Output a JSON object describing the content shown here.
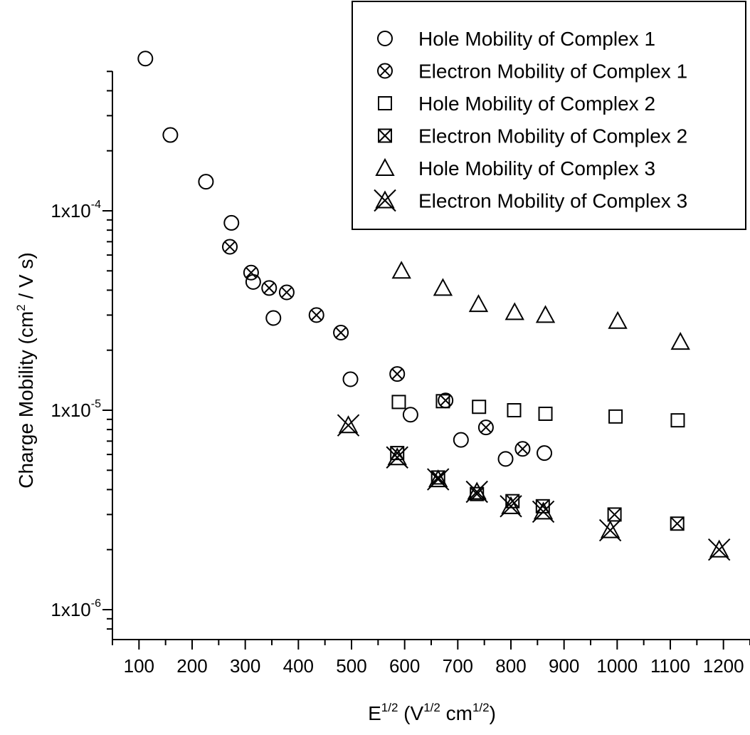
{
  "chart_data": {
    "type": "scatter",
    "xlabel": {
      "base": "E",
      "base_sup": "1/2",
      "unit_open": " (V",
      "unit_sup1": "1/2",
      "unit_mid": " cm",
      "unit_sup2": "1/2",
      "unit_close": ")"
    },
    "ylabel": {
      "before": "Charge Mobility (cm",
      "sup": "2",
      "after": " / V s)"
    },
    "xlim": [
      50,
      1250
    ],
    "ylim_log10": [
      -6.15,
      -3.3
    ],
    "y_scale": "log",
    "xticks": [
      100,
      200,
      300,
      400,
      500,
      600,
      700,
      800,
      900,
      1000,
      1100,
      1200
    ],
    "xtick_labels": [
      "100",
      "200",
      "300",
      "400",
      "500",
      "600",
      "700",
      "800",
      "900",
      "1000",
      "1100",
      "1200"
    ],
    "yticks": [
      {
        "value": 1e-06,
        "mantissa": "1x10",
        "exp": "-6"
      },
      {
        "value": 1e-05,
        "mantissa": "1x10",
        "exp": "-5"
      },
      {
        "value": 0.0001,
        "mantissa": "1x10",
        "exp": "-4"
      }
    ],
    "grid": false,
    "legend_position": "top-right",
    "series": [
      {
        "name": "Hole Mobility of Complex 1",
        "marker": "circle",
        "x": [
          112,
          159,
          226,
          274,
          315,
          353,
          498,
          611,
          706,
          790,
          863
        ],
        "y": [
          0.00058,
          0.00024,
          0.00014,
          8.7e-05,
          4.4e-05,
          2.9e-05,
          1.43e-05,
          9.5e-06,
          7.1e-06,
          5.7e-06,
          6.1e-06
        ]
      },
      {
        "name": "Electron Mobility of Complex 1",
        "marker": "circle-x",
        "x": [
          271,
          311,
          345,
          378,
          434,
          480,
          586,
          677,
          753,
          822
        ],
        "y": [
          6.6e-05,
          4.9e-05,
          4.1e-05,
          3.9e-05,
          3e-05,
          2.45e-05,
          1.52e-05,
          1.12e-05,
          8.2e-06,
          6.4e-06
        ]
      },
      {
        "name": "Hole Mobility of Complex 2",
        "marker": "square",
        "x": [
          589,
          672,
          740,
          806,
          865,
          997,
          1114
        ],
        "y": [
          1.1e-05,
          1.11e-05,
          1.04e-05,
          1e-05,
          9.6e-06,
          9.3e-06,
          8.9e-06
        ]
      },
      {
        "name": "Electron Mobility of Complex 2",
        "marker": "square-x",
        "x": [
          586,
          663,
          736,
          803,
          860,
          995,
          1113
        ],
        "y": [
          6.1e-06,
          4.6e-06,
          3.8e-06,
          3.5e-06,
          3.3e-06,
          3e-06,
          2.7e-06
        ]
      },
      {
        "name": "Hole Mobility of Complex 3",
        "marker": "triangle",
        "x": [
          594,
          672,
          739,
          807,
          865,
          1001,
          1119
        ],
        "y": [
          5e-05,
          4.1e-05,
          3.4e-05,
          3.1e-05,
          3e-05,
          2.8e-05,
          2.2e-05
        ]
      },
      {
        "name": "Electron Mobility of Complex 3",
        "marker": "asterisk-x",
        "x": [
          494,
          586,
          663,
          736,
          800,
          861,
          987,
          1192
        ],
        "y": [
          8.4e-06,
          5.8e-06,
          4.5e-06,
          3.9e-06,
          3.3e-06,
          3.1e-06,
          2.5e-06,
          2e-06
        ]
      }
    ]
  }
}
